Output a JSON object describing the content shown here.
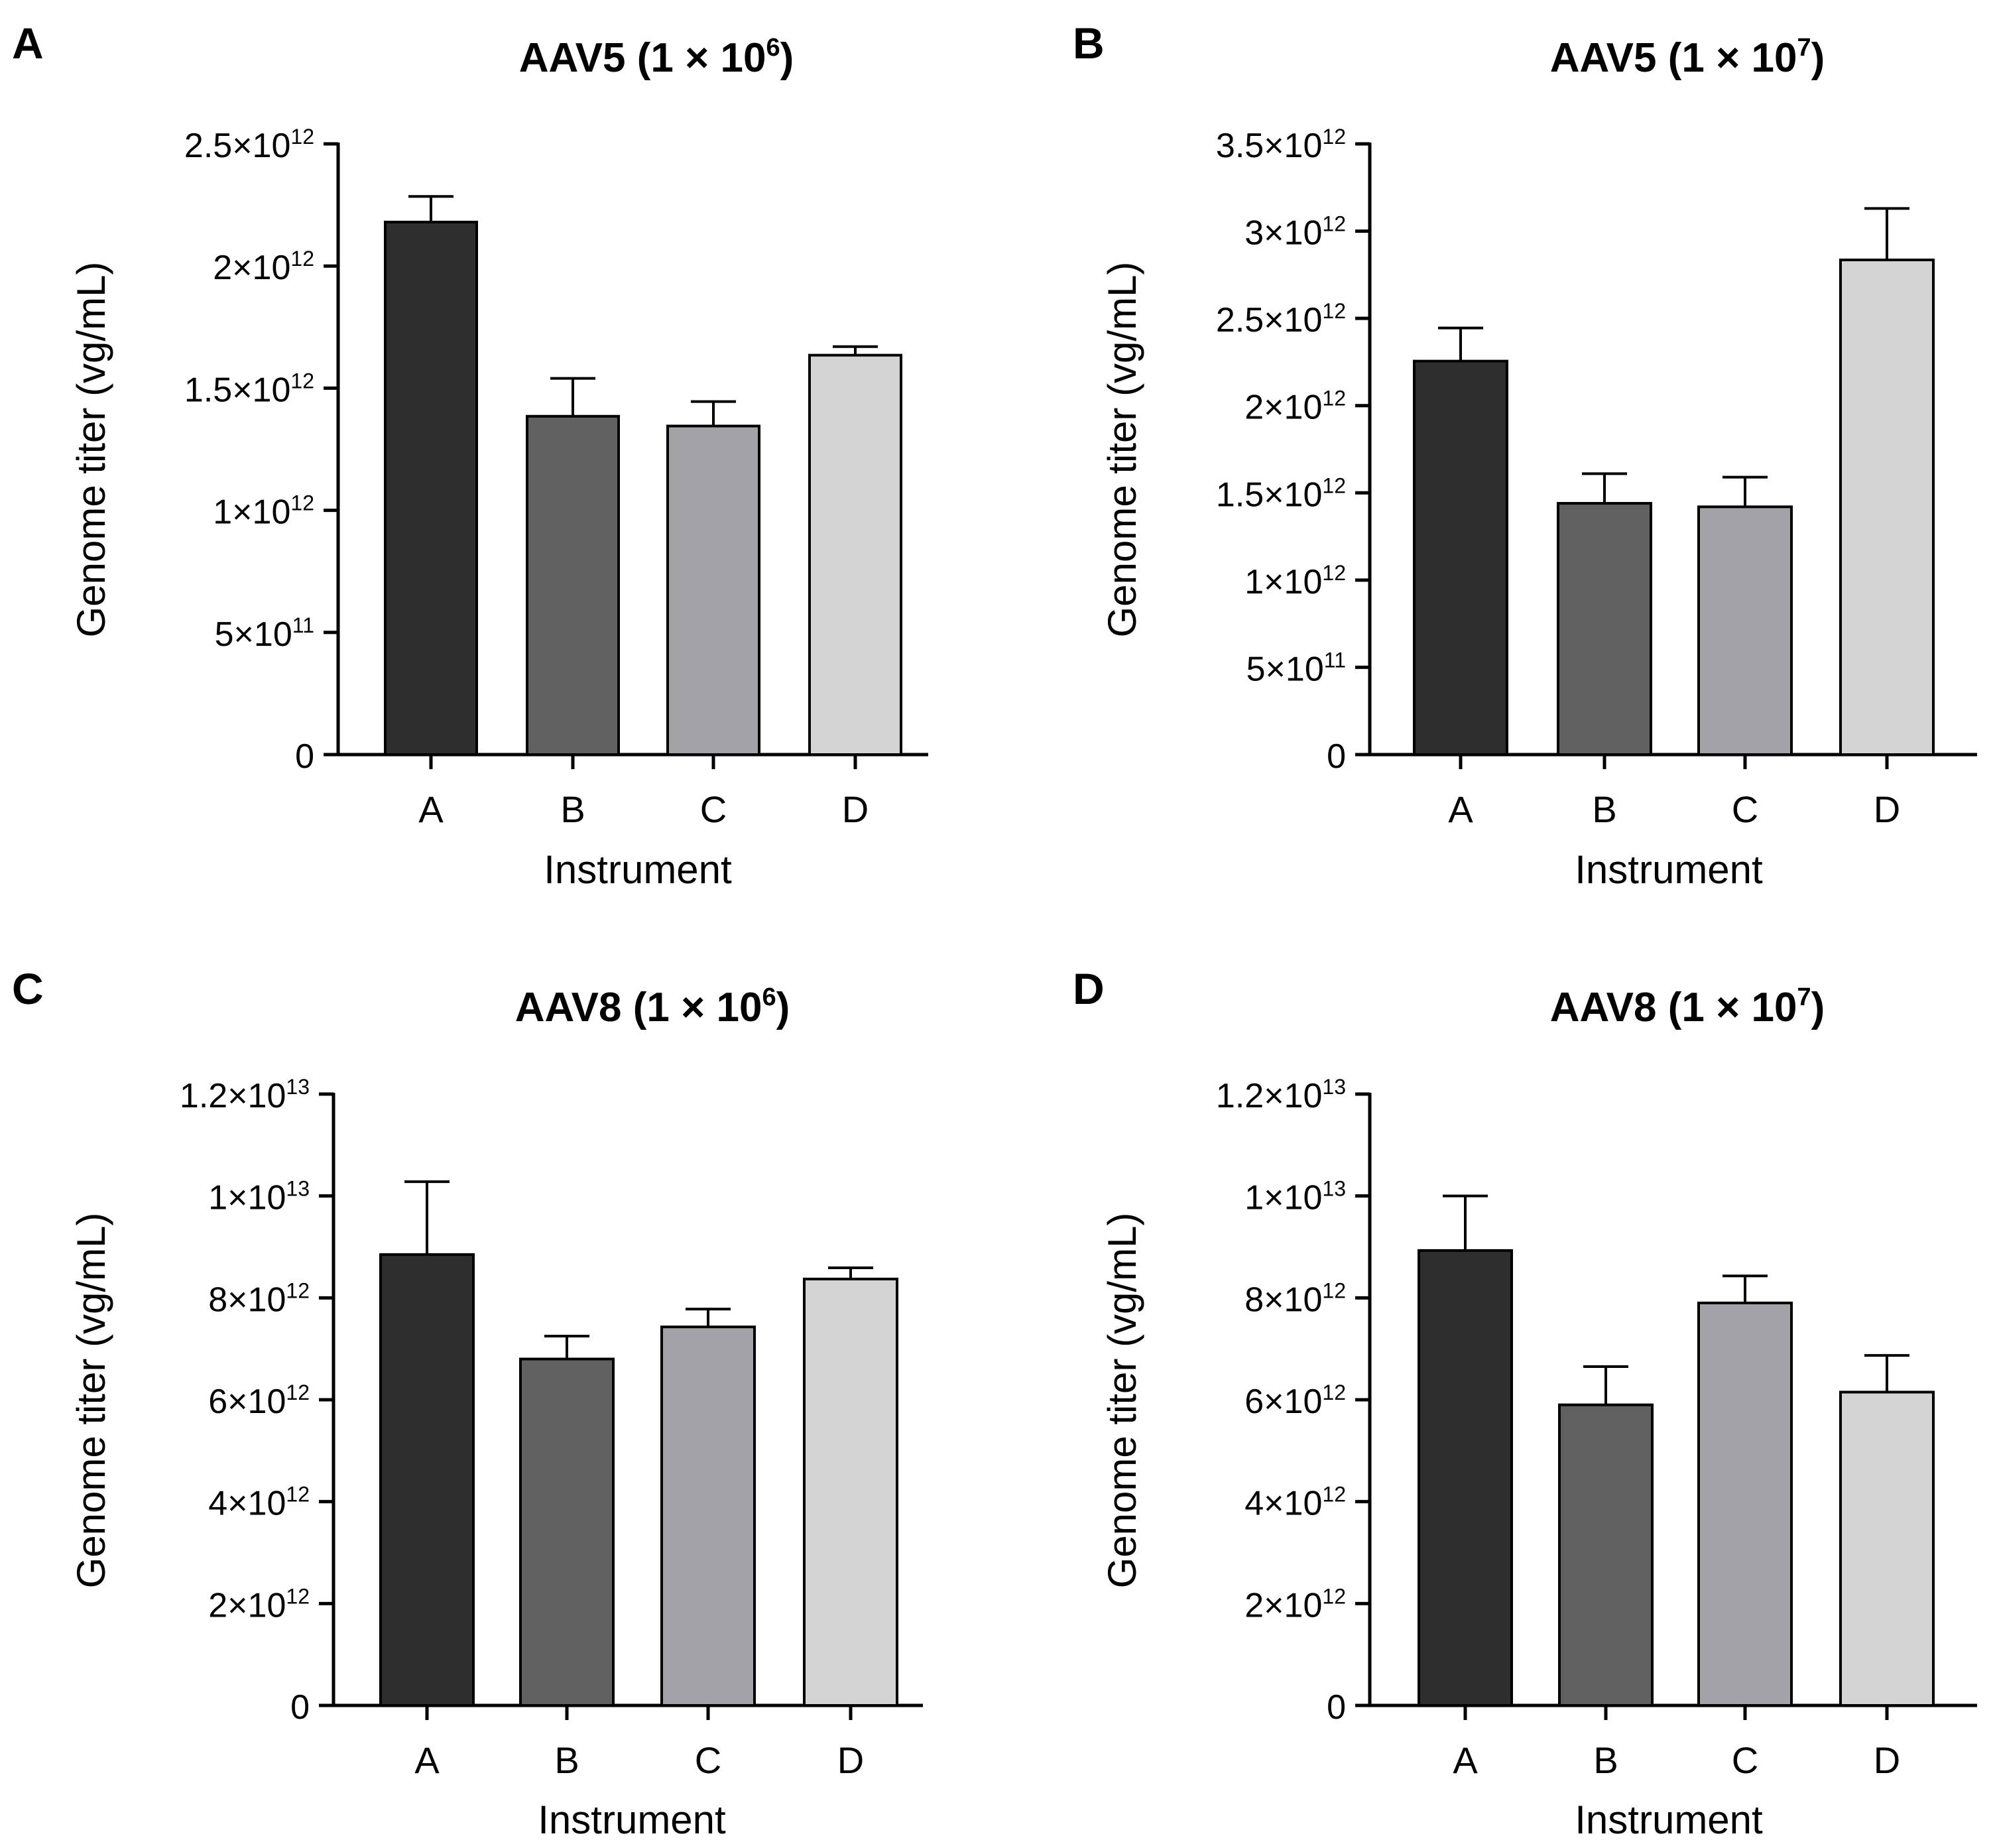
{
  "colors": {
    "background": "#ffffff",
    "axis": "#000000",
    "bar_fills": [
      "#2e2e2e",
      "#606060",
      "#a3a3a7",
      "#d4d4d4"
    ],
    "bar_stroke": "#000000"
  },
  "chart_data": [
    {
      "panel": "A",
      "type": "bar",
      "title_main": "AAV5 (1 × 10",
      "title_sup": "6",
      "title_end": ")",
      "title": "AAV5 (1 × 10^6)",
      "xlabel": "Instrument",
      "ylabel": "Genome titer (vg/mL)",
      "categories": [
        "A",
        "B",
        "C",
        "D"
      ],
      "values": [
        2180000000000.0,
        1385000000000.0,
        1345000000000.0,
        1635000000000.0
      ],
      "errors": [
        105000000000.0,
        155000000000.0,
        100000000000.0,
        35000000000.0
      ],
      "ylim": [
        0,
        2500000000000.0
      ],
      "yticks": [
        {
          "value": 0,
          "mant": "0",
          "exp": ""
        },
        {
          "value": 500000000000.0,
          "mant": "5×10",
          "exp": "11"
        },
        {
          "value": 1000000000000.0,
          "mant": "1×10",
          "exp": "12"
        },
        {
          "value": 1500000000000.0,
          "mant": "1.5×10",
          "exp": "12"
        },
        {
          "value": 2000000000000.0,
          "mant": "2×10",
          "exp": "12"
        },
        {
          "value": 2500000000000.0,
          "mant": "2.5×10",
          "exp": "12"
        }
      ]
    },
    {
      "panel": "B",
      "type": "bar",
      "title_main": "AAV5 (1 × 10",
      "title_sup": "7",
      "title_end": ")",
      "title": "AAV5 (1 × 10^7)",
      "xlabel": "Instrument",
      "ylabel": "Genome titer (vg/mL)",
      "categories": [
        "A",
        "B",
        "C",
        "D"
      ],
      "values": [
        2255000000000.0,
        1440000000000.0,
        1420000000000.0,
        2835000000000.0
      ],
      "errors": [
        190000000000.0,
        170000000000.0,
        170000000000.0,
        295000000000.0
      ],
      "ylim": [
        0,
        3500000000000.0
      ],
      "yticks": [
        {
          "value": 0,
          "mant": "0",
          "exp": ""
        },
        {
          "value": 500000000000.0,
          "mant": "5×10",
          "exp": "11"
        },
        {
          "value": 1000000000000.0,
          "mant": "1×10",
          "exp": "12"
        },
        {
          "value": 1500000000000.0,
          "mant": "1.5×10",
          "exp": "12"
        },
        {
          "value": 2000000000000.0,
          "mant": "2×10",
          "exp": "12"
        },
        {
          "value": 2500000000000.0,
          "mant": "2.5×10",
          "exp": "12"
        },
        {
          "value": 3000000000000.0,
          "mant": "3×10",
          "exp": "12"
        },
        {
          "value": 3500000000000.0,
          "mant": "3.5×10",
          "exp": "12"
        }
      ]
    },
    {
      "panel": "C",
      "type": "bar",
      "title_main": "AAV8 (1 × 10",
      "title_sup": "6",
      "title_end": ")",
      "title": "AAV8 (1 × 10^6)",
      "xlabel": "Instrument",
      "ylabel": "Genome titer (vg/mL)",
      "categories": [
        "A",
        "B",
        "C",
        "D"
      ],
      "values": [
        8850000000000.0,
        6800000000000.0,
        7430000000000.0,
        8370000000000.0
      ],
      "errors": [
        1430000000000.0,
        450000000000.0,
        350000000000.0,
        220000000000.0
      ],
      "ylim": [
        0,
        12000000000000.0
      ],
      "yticks": [
        {
          "value": 0,
          "mant": "0",
          "exp": ""
        },
        {
          "value": 2000000000000.0,
          "mant": "2×10",
          "exp": "12"
        },
        {
          "value": 4000000000000.0,
          "mant": "4×10",
          "exp": "12"
        },
        {
          "value": 6000000000000.0,
          "mant": "6×10",
          "exp": "12"
        },
        {
          "value": 8000000000000.0,
          "mant": "8×10",
          "exp": "12"
        },
        {
          "value": 10000000000000.0,
          "mant": "1×10",
          "exp": "13"
        },
        {
          "value": 12000000000000.0,
          "mant": "1.2×10",
          "exp": "13"
        }
      ]
    },
    {
      "panel": "D",
      "type": "bar",
      "title_main": "AAV8 (1 × 10",
      "title_sup": "7",
      "title_end": ")",
      "title": "AAV8 (1 × 10^7)",
      "xlabel": "Instrument",
      "ylabel": "Genome titer (vg/mL)",
      "categories": [
        "A",
        "B",
        "C",
        "D"
      ],
      "values": [
        8930000000000.0,
        5900000000000.0,
        7900000000000.0,
        6150000000000.0
      ],
      "errors": [
        1070000000000.0,
        750000000000.0,
        530000000000.0,
        720000000000.0
      ],
      "ylim": [
        0,
        12000000000000.0
      ],
      "yticks": [
        {
          "value": 0,
          "mant": "0",
          "exp": ""
        },
        {
          "value": 2000000000000.0,
          "mant": "2×10",
          "exp": "12"
        },
        {
          "value": 4000000000000.0,
          "mant": "4×10",
          "exp": "12"
        },
        {
          "value": 6000000000000.0,
          "mant": "6×10",
          "exp": "12"
        },
        {
          "value": 8000000000000.0,
          "mant": "8×10",
          "exp": "12"
        },
        {
          "value": 10000000000000.0,
          "mant": "1×10",
          "exp": "13"
        },
        {
          "value": 12000000000000.0,
          "mant": "1.2×10",
          "exp": "13"
        }
      ]
    }
  ]
}
